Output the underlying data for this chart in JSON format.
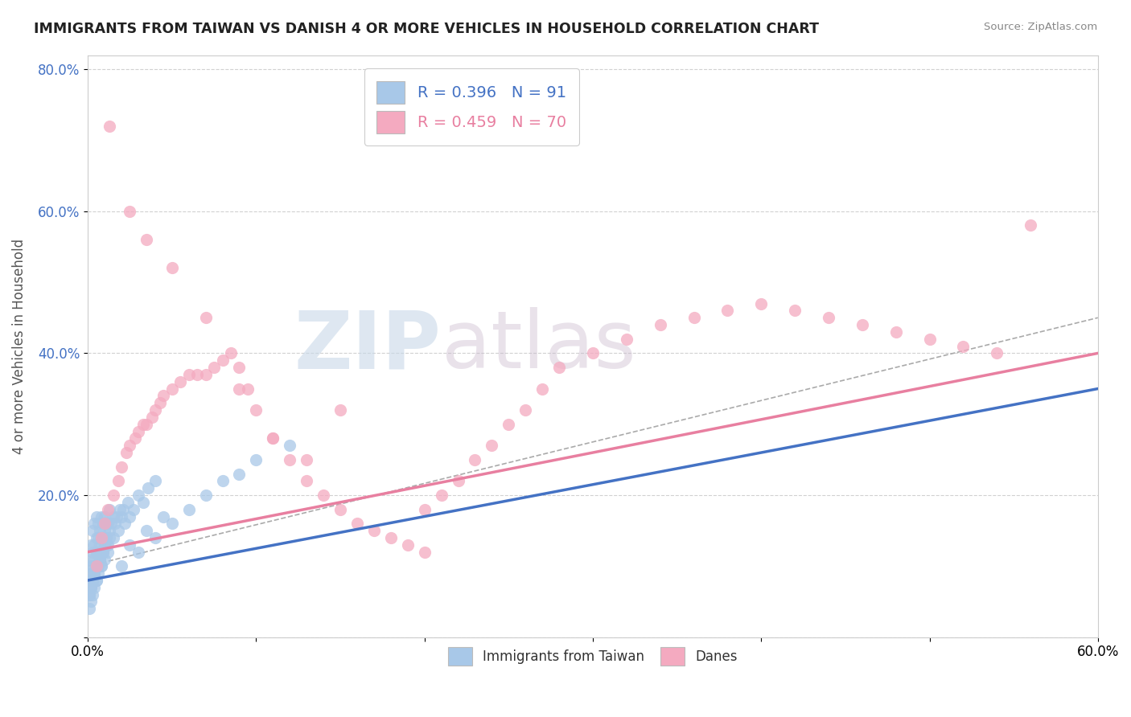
{
  "title": "IMMIGRANTS FROM TAIWAN VS DANISH 4 OR MORE VEHICLES IN HOUSEHOLD CORRELATION CHART",
  "source": "Source: ZipAtlas.com",
  "ylabel": "4 or more Vehicles in Household",
  "xlim": [
    0.0,
    0.6
  ],
  "ylim": [
    0.0,
    0.82
  ],
  "xticks": [
    0.0,
    0.1,
    0.2,
    0.3,
    0.4,
    0.5,
    0.6
  ],
  "xticklabels": [
    "0.0%",
    "",
    "",
    "",
    "",
    "",
    "60.0%"
  ],
  "yticks": [
    0.0,
    0.2,
    0.4,
    0.6,
    0.8
  ],
  "yticklabels": [
    "",
    "20.0%",
    "40.0%",
    "60.0%",
    "80.0%"
  ],
  "legend_blue_label": "R = 0.396   N = 91",
  "legend_pink_label": "R = 0.459   N = 70",
  "blue_scatter_color": "#a8c8e8",
  "pink_scatter_color": "#f4aac0",
  "blue_line_color": "#4472c4",
  "pink_line_color": "#e87fa0",
  "dashed_line_color": "#aaaaaa",
  "watermark_color": "#d0dce8",
  "taiwan_N": 91,
  "danes_N": 70,
  "taiwan_R": 0.396,
  "danes_R": 0.459,
  "bottom_legend_blue": "Immigrants from Taiwan",
  "bottom_legend_pink": "Danes",
  "taiwan_x": [
    0.001,
    0.001,
    0.001,
    0.002,
    0.002,
    0.002,
    0.002,
    0.003,
    0.003,
    0.003,
    0.003,
    0.004,
    0.004,
    0.004,
    0.004,
    0.005,
    0.005,
    0.005,
    0.005,
    0.005,
    0.006,
    0.006,
    0.006,
    0.006,
    0.007,
    0.007,
    0.007,
    0.008,
    0.008,
    0.008,
    0.008,
    0.009,
    0.009,
    0.009,
    0.01,
    0.01,
    0.01,
    0.011,
    0.011,
    0.012,
    0.012,
    0.013,
    0.013,
    0.014,
    0.015,
    0.015,
    0.016,
    0.017,
    0.018,
    0.019,
    0.02,
    0.021,
    0.022,
    0.024,
    0.025,
    0.027,
    0.03,
    0.033,
    0.036,
    0.04,
    0.001,
    0.001,
    0.002,
    0.002,
    0.003,
    0.003,
    0.004,
    0.004,
    0.005,
    0.005,
    0.006,
    0.007,
    0.008,
    0.009,
    0.01,
    0.011,
    0.012,
    0.013,
    0.02,
    0.025,
    0.03,
    0.035,
    0.04,
    0.045,
    0.05,
    0.06,
    0.07,
    0.08,
    0.09,
    0.1,
    0.12
  ],
  "taiwan_y": [
    0.06,
    0.08,
    0.1,
    0.07,
    0.09,
    0.11,
    0.13,
    0.08,
    0.1,
    0.12,
    0.15,
    0.09,
    0.11,
    0.13,
    0.16,
    0.08,
    0.1,
    0.12,
    0.14,
    0.17,
    0.1,
    0.12,
    0.14,
    0.16,
    0.11,
    0.13,
    0.15,
    0.1,
    0.12,
    0.14,
    0.17,
    0.12,
    0.14,
    0.16,
    0.13,
    0.15,
    0.17,
    0.14,
    0.16,
    0.13,
    0.16,
    0.15,
    0.18,
    0.16,
    0.14,
    0.17,
    0.16,
    0.17,
    0.15,
    0.18,
    0.17,
    0.18,
    0.16,
    0.19,
    0.17,
    0.18,
    0.2,
    0.19,
    0.21,
    0.22,
    0.04,
    0.06,
    0.05,
    0.07,
    0.06,
    0.08,
    0.07,
    0.09,
    0.08,
    0.1,
    0.09,
    0.11,
    0.1,
    0.12,
    0.11,
    0.13,
    0.12,
    0.14,
    0.1,
    0.13,
    0.12,
    0.15,
    0.14,
    0.17,
    0.16,
    0.18,
    0.2,
    0.22,
    0.23,
    0.25,
    0.27
  ],
  "danes_x": [
    0.005,
    0.008,
    0.01,
    0.012,
    0.015,
    0.018,
    0.02,
    0.023,
    0.025,
    0.028,
    0.03,
    0.033,
    0.035,
    0.038,
    0.04,
    0.043,
    0.045,
    0.05,
    0.055,
    0.06,
    0.065,
    0.07,
    0.075,
    0.08,
    0.085,
    0.09,
    0.095,
    0.1,
    0.11,
    0.12,
    0.13,
    0.14,
    0.15,
    0.16,
    0.17,
    0.18,
    0.19,
    0.2,
    0.21,
    0.22,
    0.23,
    0.24,
    0.25,
    0.26,
    0.27,
    0.28,
    0.3,
    0.32,
    0.34,
    0.36,
    0.38,
    0.4,
    0.42,
    0.44,
    0.46,
    0.48,
    0.5,
    0.52,
    0.54,
    0.56,
    0.013,
    0.025,
    0.035,
    0.05,
    0.07,
    0.09,
    0.11,
    0.13,
    0.15,
    0.2
  ],
  "danes_y": [
    0.1,
    0.14,
    0.16,
    0.18,
    0.2,
    0.22,
    0.24,
    0.26,
    0.27,
    0.28,
    0.29,
    0.3,
    0.3,
    0.31,
    0.32,
    0.33,
    0.34,
    0.35,
    0.36,
    0.37,
    0.37,
    0.37,
    0.38,
    0.39,
    0.4,
    0.38,
    0.35,
    0.32,
    0.28,
    0.25,
    0.22,
    0.2,
    0.18,
    0.16,
    0.15,
    0.14,
    0.13,
    0.12,
    0.2,
    0.22,
    0.25,
    0.27,
    0.3,
    0.32,
    0.35,
    0.38,
    0.4,
    0.42,
    0.44,
    0.45,
    0.46,
    0.47,
    0.46,
    0.45,
    0.44,
    0.43,
    0.42,
    0.41,
    0.4,
    0.58,
    0.72,
    0.6,
    0.56,
    0.52,
    0.45,
    0.35,
    0.28,
    0.25,
    0.32,
    0.18
  ]
}
